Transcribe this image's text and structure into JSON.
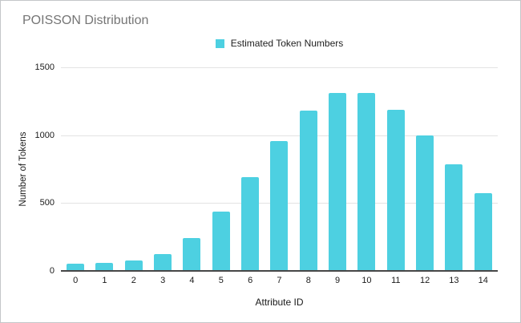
{
  "chart_data": {
    "type": "bar",
    "title": "POISSON Distribution",
    "xlabel": "Attribute ID",
    "ylabel": "Number of Tokens",
    "legend_position": "top-center",
    "categories": [
      "0",
      "1",
      "2",
      "3",
      "4",
      "5",
      "6",
      "7",
      "8",
      "9",
      "10",
      "11",
      "12",
      "13",
      "14"
    ],
    "series": [
      {
        "name": "Estimated Token Numbers",
        "color": "#4dd0e1",
        "values": [
          55,
          60,
          75,
          125,
          240,
          435,
          690,
          955,
          1180,
          1310,
          1310,
          1190,
          1000,
          785,
          570
        ]
      }
    ],
    "ylim": [
      0,
      1500
    ],
    "yticks": [
      0,
      500,
      1000,
      1500
    ],
    "grid": true
  },
  "colors": {
    "bar": "#4dd0e1",
    "title_text": "#757575",
    "axis_text": "#1a1a1a",
    "gridline": "#e3e3e3",
    "baseline": "#474747",
    "frame_border": "#c4c7c9",
    "background": "#ffffff"
  }
}
